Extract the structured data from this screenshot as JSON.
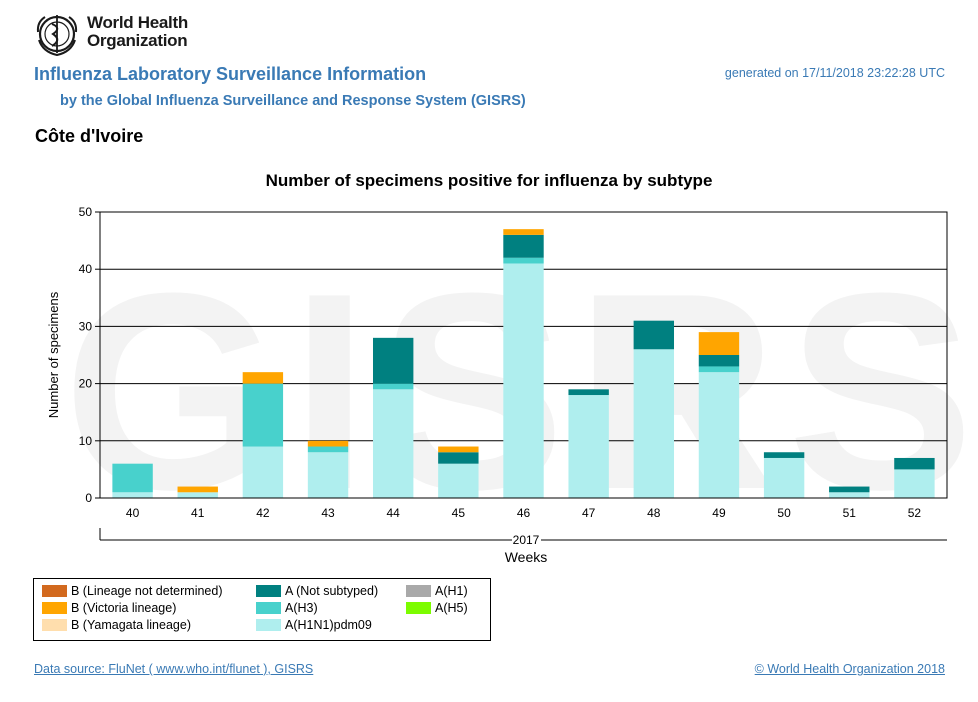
{
  "header": {
    "org_name_line1": "World Health",
    "org_name_line2": "Organization",
    "title": "Influenza Laboratory Surveillance Information",
    "subtitle": "by the Global Influenza Surveillance and Response System (GISRS)",
    "generated": "generated on 17/11/2018 23:22:28 UTC",
    "country": "Côte d'Ivoire"
  },
  "watermark": "GISRS",
  "colors": {
    "B (Lineage not determined)": "#d2691e",
    "B (Victoria lineage)": "#ffa500",
    "B (Yamagata lineage)": "#ffdead",
    "A (Not subtyped)": "#008080",
    "A(H3)": "#48d1cc",
    "A(H1N1)pdm09": "#afeeee",
    "A(H1)": "#a9a9a9",
    "A(H5)": "#7cfc00"
  },
  "legend": [
    {
      "label": "B (Lineage not determined)",
      "color": "#d2691e"
    },
    {
      "label": "B (Victoria lineage)",
      "color": "#ffa500"
    },
    {
      "label": "B (Yamagata lineage)",
      "color": "#ffdead"
    },
    {
      "label": "A (Not subtyped)",
      "color": "#008080"
    },
    {
      "label": "A(H3)",
      "color": "#48d1cc"
    },
    {
      "label": "A(H1N1)pdm09",
      "color": "#afeeee"
    },
    {
      "label": "A(H1)",
      "color": "#a9a9a9"
    },
    {
      "label": "A(H5)",
      "color": "#7cfc00"
    }
  ],
  "chart_data": {
    "type": "bar",
    "stacked": true,
    "title": "Number of specimens positive for influenza by subtype",
    "xlabel": "Weeks",
    "x_group_label": "2017",
    "ylabel": "Number of specimens",
    "ylim": [
      0,
      50
    ],
    "yticks": [
      0,
      10,
      20,
      30,
      40,
      50
    ],
    "grid": true,
    "categories": [
      "40",
      "41",
      "42",
      "43",
      "44",
      "45",
      "46",
      "47",
      "48",
      "49",
      "50",
      "51",
      "52"
    ],
    "series": [
      {
        "name": "A(H1N1)pdm09",
        "color": "#afeeee",
        "values": [
          1,
          1,
          9,
          8,
          19,
          6,
          41,
          18,
          26,
          22,
          7,
          1,
          5
        ]
      },
      {
        "name": "A(H3)",
        "color": "#48d1cc",
        "values": [
          5,
          0,
          11,
          1,
          1,
          0,
          1,
          0,
          0,
          1,
          0,
          0,
          0
        ]
      },
      {
        "name": "A (Not subtyped)",
        "color": "#008080",
        "values": [
          0,
          0,
          0,
          0,
          8,
          2,
          4,
          1,
          5,
          2,
          1,
          1,
          2
        ]
      },
      {
        "name": "B (Victoria lineage)",
        "color": "#ffa500",
        "values": [
          0,
          1,
          2,
          1,
          0,
          1,
          1,
          0,
          0,
          4,
          0,
          0,
          0
        ]
      }
    ]
  },
  "footer": {
    "source": "Data source: FluNet ( www.who.int/flunet ), GISRS",
    "copyright": "© World Health Organization 2018"
  }
}
